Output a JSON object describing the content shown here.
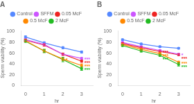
{
  "chart_data": [
    {
      "type": "line",
      "title": "A",
      "xlabel": "hr",
      "ylabel": "Sperm viability (%)",
      "x": [
        0,
        1,
        2,
        3
      ],
      "xlim": [
        -0.25,
        3.6
      ],
      "xticks": [
        0,
        1,
        2,
        3
      ],
      "ylim": [
        0,
        102
      ],
      "yticks": [
        0,
        20,
        40,
        60,
        80,
        100
      ],
      "grid": false,
      "legend": "top",
      "marker": "circle",
      "series": [
        {
          "name": "Control",
          "color": "#5588ff",
          "values": [
            90,
            79,
            70,
            62
          ],
          "errors": [
            2,
            2,
            2,
            2
          ]
        },
        {
          "name": "SFFM",
          "color": "#cc55ff",
          "values": [
            85,
            76,
            58,
            50
          ],
          "errors": [
            2,
            2,
            2,
            2
          ]
        },
        {
          "name": "0.05 McF",
          "color": "#ee2222",
          "values": [
            84,
            75,
            58,
            45
          ],
          "errors": [
            2,
            2,
            2,
            2
          ]
        },
        {
          "name": "0.5 McF",
          "color": "#ff8800",
          "values": [
            83,
            64,
            49,
            37
          ],
          "errors": [
            2,
            3,
            3,
            3
          ]
        },
        {
          "name": "2 McF",
          "color": "#22bb22",
          "values": [
            82,
            64,
            48,
            31
          ],
          "errors": [
            2,
            3,
            4,
            3
          ]
        }
      ],
      "annotations": [
        {
          "text": "***",
          "series": "SFFM",
          "x": 3
        },
        {
          "text": "***",
          "series": "0.05 McF",
          "x": 3
        },
        {
          "text": "***",
          "series": "0.5 McF",
          "x": 3
        },
        {
          "text": "***",
          "series": "2 McF",
          "x": 3
        },
        {
          "text": "*",
          "series": "0.5 McF",
          "x": 2
        }
      ]
    },
    {
      "type": "line",
      "title": "B",
      "xlabel": "hr",
      "ylabel": "Sperm viability (%)",
      "x": [
        0,
        1,
        2,
        3
      ],
      "xlim": [
        -0.25,
        3.6
      ],
      "xticks": [
        0,
        1,
        2,
        3
      ],
      "ylim": [
        0,
        102
      ],
      "yticks": [
        0,
        20,
        40,
        60,
        80,
        100
      ],
      "grid": false,
      "legend": "top",
      "marker": "circle",
      "series": [
        {
          "name": "Control",
          "color": "#5588ff",
          "values": [
            85,
            77,
            72,
            69
          ],
          "errors": [
            1.5,
            1.5,
            1.5,
            1.5
          ]
        },
        {
          "name": "SFFM",
          "color": "#cc55ff",
          "values": [
            80,
            72,
            65,
            58
          ],
          "errors": [
            1.5,
            1.5,
            1.5,
            1.5
          ]
        },
        {
          "name": "0.05 McF",
          "color": "#ee2222",
          "values": [
            78,
            70,
            63,
            57
          ],
          "errors": [
            1.5,
            1.5,
            1.5,
            1.5
          ]
        },
        {
          "name": "0.5 McF",
          "color": "#ff8800",
          "values": [
            76,
            67,
            59,
            43
          ],
          "errors": [
            1.5,
            2,
            2,
            2
          ]
        },
        {
          "name": "2 McF",
          "color": "#22bb22",
          "values": [
            74,
            64,
            56,
            39
          ],
          "errors": [
            1.5,
            2,
            2,
            3
          ]
        }
      ],
      "annotations": [
        {
          "text": "*",
          "series": "SFFM",
          "x": 3
        },
        {
          "text": "***",
          "series": "0.05 McF",
          "x": 3
        },
        {
          "text": "***",
          "series": "0.5 McF",
          "x": 3
        },
        {
          "text": "***",
          "series": "2 McF",
          "x": 3
        },
        {
          "text": "***",
          "series": "0.05 McF",
          "x": 2
        },
        {
          "text": "***",
          "series": "0.5 McF",
          "x": 2
        },
        {
          "text": "***",
          "series": "2 McF",
          "x": 2
        }
      ]
    }
  ]
}
